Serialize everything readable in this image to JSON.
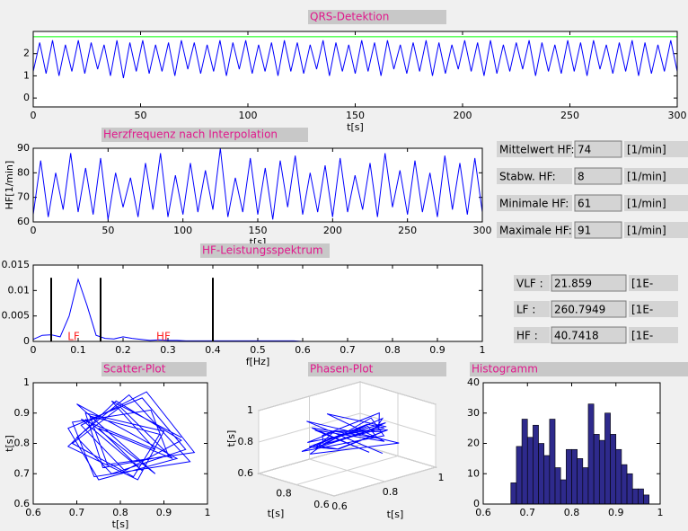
{
  "chart_data": [
    {
      "type": "line",
      "title": "QRS-Detektion",
      "xlabel": "t[s]",
      "xlim": [
        0,
        300
      ],
      "xticks": [
        0,
        50,
        100,
        150,
        200,
        250,
        300
      ],
      "ylim": [
        -0.4,
        3
      ],
      "yticks": [
        0,
        1,
        2
      ],
      "series": [
        {
          "color": "#0000ff",
          "x": [
            0,
            3,
            6,
            9,
            12,
            15,
            18,
            21,
            24,
            27,
            30,
            33,
            36,
            39,
            42,
            45,
            48,
            51,
            54,
            57,
            60,
            63,
            66,
            69,
            72,
            75,
            78,
            81,
            84,
            87,
            90,
            93,
            96,
            99,
            102,
            105,
            108,
            111,
            114,
            117,
            120,
            123,
            126,
            129,
            132,
            135,
            138,
            141,
            144,
            147,
            150,
            153,
            156,
            159,
            162,
            165,
            168,
            171,
            174,
            177,
            180,
            183,
            186,
            189,
            192,
            195,
            198,
            201,
            204,
            207,
            210,
            213,
            216,
            219,
            222,
            225,
            228,
            231,
            234,
            237,
            240,
            243,
            246,
            249,
            252,
            255,
            258,
            261,
            264,
            267,
            270,
            273,
            276,
            279,
            282,
            285,
            288,
            291,
            294,
            297,
            300
          ],
          "values": [
            1.2,
            2.5,
            1.1,
            2.6,
            1.0,
            2.4,
            1.2,
            2.6,
            1.1,
            2.5,
            1.3,
            2.4,
            1.0,
            2.6,
            0.9,
            2.5,
            1.2,
            2.6,
            1.1,
            2.4,
            1.2,
            2.5,
            1.0,
            2.6,
            1.3,
            2.5,
            1.1,
            2.4,
            1.2,
            2.6,
            1.0,
            2.5,
            1.3,
            2.6,
            1.1,
            2.4,
            1.2,
            2.5,
            1.0,
            2.6,
            1.2,
            2.5,
            1.1,
            2.4,
            1.3,
            2.6,
            1.0,
            2.5,
            1.2,
            2.4,
            1.1,
            2.6,
            1.2,
            2.5,
            1.0,
            2.6,
            1.3,
            2.4,
            1.1,
            2.5,
            1.2,
            2.6,
            1.0,
            2.5,
            1.1,
            2.4,
            1.3,
            2.6,
            1.2,
            2.5,
            1.0,
            2.6,
            1.1,
            2.4,
            1.2,
            2.5,
            1.3,
            2.6,
            1.0,
            2.5,
            1.2,
            2.4,
            1.1,
            2.6,
            1.2,
            2.5,
            1.0,
            2.6,
            1.3,
            2.4,
            1.1,
            2.5,
            1.2,
            2.6,
            1.0,
            2.5,
            1.1,
            2.4,
            1.2,
            2.6,
            1.2
          ]
        },
        {
          "color": "#00ff00",
          "x": [
            0,
            300
          ],
          "values": [
            2.76,
            2.76
          ]
        }
      ]
    },
    {
      "type": "line",
      "title": "Herzfrequenz nach Interpolation",
      "xlabel": "t[s]",
      "ylabel": "HF[1/min]",
      "xlim": [
        0,
        300
      ],
      "xticks": [
        0,
        50,
        100,
        150,
        200,
        250,
        300
      ],
      "ylim": [
        60,
        90
      ],
      "yticks": [
        60,
        70,
        80,
        90
      ],
      "series": [
        {
          "color": "#0000ff",
          "x": [
            0,
            5,
            10,
            15,
            20,
            25,
            30,
            35,
            40,
            45,
            50,
            55,
            60,
            65,
            70,
            75,
            80,
            85,
            90,
            95,
            100,
            105,
            110,
            115,
            120,
            125,
            130,
            135,
            140,
            145,
            150,
            155,
            160,
            165,
            170,
            175,
            180,
            185,
            190,
            195,
            200,
            205,
            210,
            215,
            220,
            225,
            230,
            235,
            240,
            245,
            250,
            255,
            260,
            265,
            270,
            275,
            280,
            285,
            290,
            295,
            300
          ],
          "values": [
            63,
            85,
            62,
            80,
            65,
            88,
            64,
            82,
            63,
            86,
            61,
            80,
            66,
            78,
            62,
            84,
            65,
            88,
            62,
            79,
            63,
            84,
            64,
            81,
            65,
            90,
            62,
            78,
            64,
            86,
            63,
            82,
            61,
            85,
            66,
            87,
            63,
            80,
            64,
            83,
            62,
            86,
            64,
            79,
            65,
            84,
            62,
            88,
            66,
            81,
            63,
            85,
            64,
            80,
            62,
            87,
            65,
            84,
            63,
            86,
            64
          ]
        }
      ]
    },
    {
      "type": "line",
      "title": "HF-Leistungsspektrum",
      "xlabel": "f[Hz]",
      "xlim": [
        0,
        1
      ],
      "xticks": [
        0,
        0.1,
        0.2,
        0.3,
        0.4,
        0.5,
        0.6,
        0.7,
        0.8,
        0.9,
        1
      ],
      "ylim": [
        0,
        0.015
      ],
      "yticks": [
        0,
        0.005,
        0.01,
        0.015
      ],
      "series": [
        {
          "color": "#0000ff",
          "x": [
            0,
            0.02,
            0.04,
            0.06,
            0.08,
            0.1,
            0.12,
            0.14,
            0.16,
            0.18,
            0.2,
            0.22,
            0.24,
            0.26,
            0.28,
            0.3,
            0.32,
            0.34,
            0.36,
            0.38,
            0.4,
            0.42,
            0.44,
            0.46,
            0.48,
            0.5,
            0.52,
            0.54,
            0.56,
            0.58,
            0.6,
            0.62,
            0.64,
            0.66,
            0.68,
            0.7,
            0.72,
            0.74,
            0.76,
            0.78,
            0.8,
            0.82,
            0.84,
            0.86,
            0.88,
            0.9,
            0.92,
            0.94,
            0.96,
            0.98
          ],
          "values": [
            0.0004,
            0.0012,
            0.0013,
            0.0009,
            0.005,
            0.0122,
            0.007,
            0.0012,
            0.0006,
            0.0005,
            0.0009,
            0.0006,
            0.0004,
            0.0002,
            0.0003,
            0.0002,
            0.0002,
            0.0001,
            0.0001,
            0.0001,
            0.0001,
            0.0001,
            0.0001,
            0.0001,
            0.0001,
            0.0001,
            0.0001,
            0.0001,
            0.0001,
            0.0001,
            0,
            0,
            0,
            0,
            0,
            0,
            0,
            0,
            0,
            0,
            0,
            0,
            0,
            0,
            0,
            0,
            0,
            0,
            0,
            0
          ]
        }
      ],
      "markers": {
        "color": "#000000",
        "x": [
          0.04,
          0.15,
          0.4
        ],
        "height": 0.0125
      },
      "annotations": [
        {
          "text": "LF",
          "x": 0.09,
          "y": 0,
          "color": "#ff2020"
        },
        {
          "text": "HF",
          "x": 0.29,
          "y": 0,
          "color": "#ff2020"
        }
      ]
    },
    {
      "type": "line",
      "title": "Scatter-Plot",
      "xlabel": "t[s]",
      "ylabel": "t[s]",
      "xlim": [
        0.6,
        1
      ],
      "xticks": [
        0.6,
        0.7,
        0.8,
        0.9,
        1
      ],
      "ylim": [
        0.6,
        1
      ],
      "yticks": [
        0.6,
        0.7,
        0.8,
        0.9,
        1
      ],
      "series": [
        {
          "color": "#0000ff",
          "x": [
            0.72,
            0.88,
            0.7,
            0.93,
            0.75,
            0.68,
            0.85,
            0.95,
            0.78,
            0.7,
            0.82,
            0.96,
            0.74,
            0.69,
            0.87,
            0.91,
            0.76,
            0.72,
            0.9,
            0.84,
            0.68,
            0.79,
            0.94,
            0.81,
            0.71,
            0.86,
            0.97,
            0.77,
            0.73,
            0.89,
            0.83,
            0.69,
            0.8,
            0.92,
            0.75,
            0.85,
            0.71,
            0.88,
            0.78,
            0.94
          ],
          "values": [
            0.88,
            0.7,
            0.93,
            0.75,
            0.68,
            0.85,
            0.95,
            0.78,
            0.7,
            0.82,
            0.96,
            0.74,
            0.69,
            0.87,
            0.91,
            0.76,
            0.72,
            0.9,
            0.84,
            0.68,
            0.79,
            0.94,
            0.81,
            0.71,
            0.86,
            0.97,
            0.77,
            0.73,
            0.89,
            0.83,
            0.69,
            0.8,
            0.92,
            0.75,
            0.85,
            0.71,
            0.88,
            0.78,
            0.94,
            0.82
          ]
        }
      ]
    },
    {
      "type": "line3d",
      "title": "Phasen-Plot",
      "xlabel": "t[s]",
      "ylabel": "t[s]",
      "zlabel": "t[s]",
      "xlim": [
        0.6,
        1
      ],
      "xticks": [
        0.6,
        0.8
      ],
      "ylim": [
        0.6,
        1
      ],
      "yticks": [
        0.6,
        0.8,
        1
      ],
      "zlim": [
        0.6,
        1
      ],
      "zticks": [
        0.6,
        0.8,
        1
      ],
      "series": [
        {
          "color": "#0000ff",
          "x": [
            0.72,
            0.88,
            0.7,
            0.93,
            0.75,
            0.68,
            0.85,
            0.95,
            0.78,
            0.7,
            0.82,
            0.96,
            0.74,
            0.69,
            0.87,
            0.91,
            0.76,
            0.72,
            0.9,
            0.84,
            0.68,
            0.79,
            0.94,
            0.81,
            0.71,
            0.86,
            0.97,
            0.77,
            0.73,
            0.89,
            0.83,
            0.69,
            0.8,
            0.92,
            0.75,
            0.85,
            0.71,
            0.88,
            0.78
          ],
          "y": [
            0.88,
            0.7,
            0.93,
            0.75,
            0.68,
            0.85,
            0.95,
            0.78,
            0.7,
            0.82,
            0.96,
            0.74,
            0.69,
            0.87,
            0.91,
            0.76,
            0.72,
            0.9,
            0.84,
            0.68,
            0.79,
            0.94,
            0.81,
            0.71,
            0.86,
            0.97,
            0.77,
            0.73,
            0.89,
            0.83,
            0.69,
            0.8,
            0.92,
            0.75,
            0.85,
            0.71,
            0.88,
            0.78,
            0.94
          ],
          "z": [
            0.7,
            0.93,
            0.75,
            0.68,
            0.85,
            0.95,
            0.78,
            0.7,
            0.82,
            0.96,
            0.74,
            0.69,
            0.87,
            0.91,
            0.76,
            0.72,
            0.9,
            0.84,
            0.68,
            0.79,
            0.94,
            0.81,
            0.71,
            0.86,
            0.97,
            0.77,
            0.73,
            0.89,
            0.83,
            0.69,
            0.8,
            0.92,
            0.75,
            0.85,
            0.71,
            0.88,
            0.78,
            0.94,
            0.82
          ]
        }
      ]
    },
    {
      "type": "histogram",
      "title": "Histogramm",
      "color": "#2e2a8c",
      "xlim": [
        0.6,
        1
      ],
      "xticks": [
        0.6,
        0.7,
        0.8,
        0.9,
        1
      ],
      "ylim": [
        0,
        40
      ],
      "yticks": [
        0,
        10,
        20,
        30,
        40
      ],
      "bins": [
        0.6625,
        0.675,
        0.6875,
        0.7,
        0.7125,
        0.725,
        0.7375,
        0.75,
        0.7625,
        0.775,
        0.7875,
        0.8,
        0.8125,
        0.825,
        0.8375,
        0.85,
        0.8625,
        0.875,
        0.8875,
        0.9,
        0.9125,
        0.925,
        0.9375,
        0.95,
        0.9625,
        0.975
      ],
      "counts": [
        7,
        19,
        28,
        22,
        26,
        20,
        16,
        28,
        12,
        8,
        18,
        18,
        15,
        12,
        33,
        23,
        21,
        30,
        23,
        18,
        13,
        10,
        5,
        5,
        3
      ]
    }
  ],
  "hf_stats": [
    {
      "label": "Mittelwert HF:",
      "value": 74,
      "unit": "[1/min]"
    },
    {
      "label": "Stabw. HF:",
      "value": 8,
      "unit": "[1/min]"
    },
    {
      "label": "Minimale HF:",
      "value": 61,
      "unit": "[1/min]"
    },
    {
      "label": "Maximale HF:",
      "value": 91,
      "unit": "[1/min]"
    }
  ],
  "spectral_stats": [
    {
      "label": "VLF :",
      "value": 21.859,
      "unit": "[1E-"
    },
    {
      "label": "LF :",
      "value": 260.7949,
      "unit": "[1E-"
    },
    {
      "label": "HF :",
      "value": 40.7418,
      "unit": "[1E-"
    }
  ]
}
